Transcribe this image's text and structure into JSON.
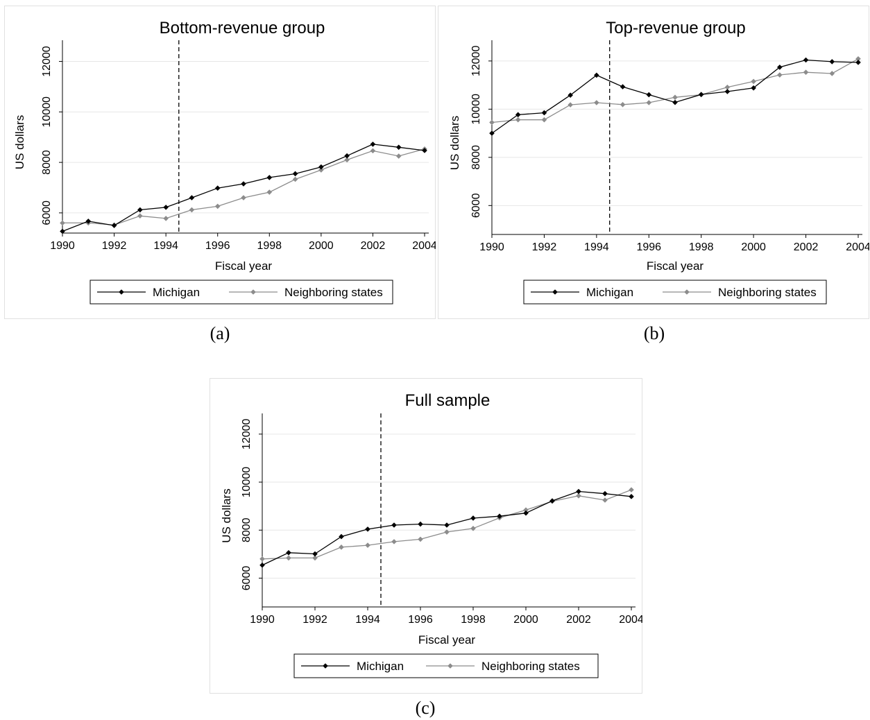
{
  "captions": [
    "(a)",
    "(b)",
    "(c)"
  ],
  "colors": {
    "michigan": "#000000",
    "neighboring": "#8c8c8c",
    "grid": "#e6e6e6",
    "frame": "#e0e0e0"
  },
  "chart_data": [
    {
      "type": "line",
      "title": "Bottom-revenue group",
      "xlabel": "Fiscal year",
      "ylabel": "US dollars",
      "x": [
        1990,
        1991,
        1992,
        1993,
        1994,
        1995,
        1996,
        1997,
        1998,
        1999,
        2000,
        2001,
        2002,
        2003,
        2004
      ],
      "xticks": [
        "1990",
        "1992",
        "1994",
        "1996",
        "1998",
        "2000",
        "2002",
        "2004"
      ],
      "yticks": [
        "6000",
        "8000",
        "10000",
        "12000"
      ],
      "xlim": [
        1990,
        2004
      ],
      "ylim": [
        5200,
        12400
      ],
      "grid": true,
      "vline": 1994.5,
      "legend": "bottom",
      "series": [
        {
          "name": "Michigan",
          "values": [
            5270,
            5670,
            5500,
            6120,
            6220,
            6600,
            6980,
            7150,
            7400,
            7550,
            7820,
            8260,
            8720,
            8600,
            8470
          ]
        },
        {
          "name": "Neighboring states",
          "values": [
            5600,
            5600,
            5520,
            5880,
            5780,
            6120,
            6260,
            6600,
            6820,
            7330,
            7700,
            8100,
            8460,
            8250,
            8530
          ]
        }
      ]
    },
    {
      "type": "line",
      "title": "Top-revenue group",
      "xlabel": "Fiscal year",
      "ylabel": "US dollars",
      "x": [
        1990,
        1991,
        1992,
        1993,
        1994,
        1995,
        1996,
        1997,
        1998,
        1999,
        2000,
        2001,
        2002,
        2003,
        2004
      ],
      "xticks": [
        "1990",
        "1992",
        "1994",
        "1996",
        "1998",
        "2000",
        "2002",
        "2004"
      ],
      "yticks": [
        "6000",
        "8000",
        "10000",
        "12000"
      ],
      "xlim": [
        1990,
        2004
      ],
      "ylim": [
        4800,
        12400
      ],
      "grid": true,
      "vline": 1994.5,
      "legend": "bottom",
      "series": [
        {
          "name": "Michigan",
          "values": [
            9000,
            9770,
            9850,
            10580,
            11410,
            10930,
            10600,
            10280,
            10610,
            10730,
            10880,
            11740,
            12040,
            11970,
            11940
          ]
        },
        {
          "name": "Neighboring states",
          "values": [
            9450,
            9560,
            9560,
            10180,
            10270,
            10190,
            10270,
            10490,
            10600,
            10910,
            11150,
            11420,
            11530,
            11480,
            12090
          ]
        }
      ]
    },
    {
      "type": "line",
      "title": "Full sample",
      "xlabel": "Fiscal year",
      "ylabel": "US dollars",
      "x": [
        1990,
        1991,
        1992,
        1993,
        1994,
        1995,
        1996,
        1997,
        1998,
        1999,
        2000,
        2001,
        2002,
        2003,
        2004
      ],
      "xticks": [
        "1990",
        "1992",
        "1994",
        "1996",
        "1998",
        "2000",
        "2002",
        "2004"
      ],
      "yticks": [
        "6000",
        "8000",
        "10000",
        "12000"
      ],
      "xlim": [
        1990,
        2004
      ],
      "ylim": [
        4800,
        12400
      ],
      "grid": true,
      "vline": 1994.5,
      "legend": "bottom",
      "series": [
        {
          "name": "Michigan",
          "values": [
            6540,
            7060,
            7010,
            7730,
            8040,
            8210,
            8250,
            8210,
            8500,
            8580,
            8710,
            9220,
            9610,
            9520,
            9400
          ]
        },
        {
          "name": "Neighboring states",
          "values": [
            6800,
            6840,
            6840,
            7290,
            7370,
            7520,
            7620,
            7920,
            8070,
            8510,
            8840,
            9200,
            9430,
            9250,
            9680
          ]
        }
      ]
    }
  ]
}
